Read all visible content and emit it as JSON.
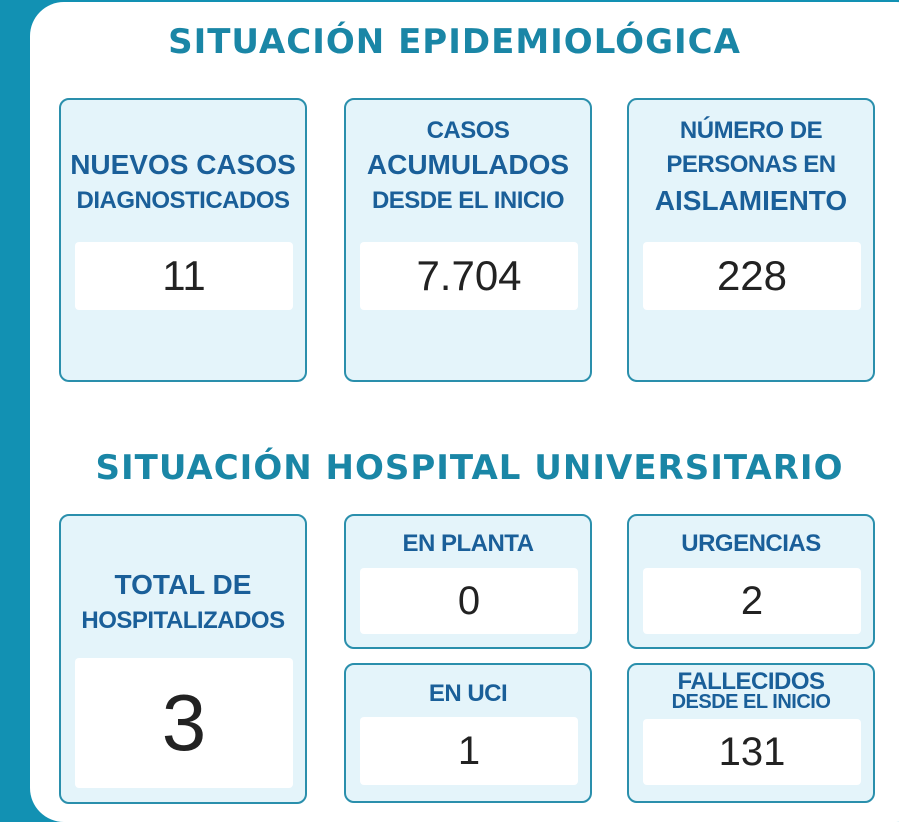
{
  "epidemiologic": {
    "title": "SITUACIÓN EPIDEMIOLÓGICA",
    "cards": [
      {
        "line1": "",
        "line2": "NUEVOS CASOS",
        "line3": "DIAGNOSTICADOS",
        "value": "11"
      },
      {
        "line1": "CASOS",
        "line2": "ACUMULADOS",
        "line3": "DESDE EL INICIO",
        "value": "7.704"
      },
      {
        "line1": "NÚMERO DE",
        "line2": "PERSONAS EN",
        "line3": "AISLAMIENTO",
        "value": "228"
      }
    ]
  },
  "hospital": {
    "title": "SITUACIÓN HOSPITAL UNIVERSITARIO",
    "total": {
      "line1": "TOTAL DE",
      "line2": "HOSPITALIZADOS",
      "value": "3"
    },
    "en_planta": {
      "label": "EN PLANTA",
      "value": "0"
    },
    "urgencias": {
      "label": "URGENCIAS",
      "value": "2"
    },
    "en_uci": {
      "label": "EN UCI",
      "value": "1"
    },
    "fallecidos": {
      "line1": "FALLECIDOS",
      "line2": "DESDE EL INICIO",
      "value": "131"
    }
  },
  "colors": {
    "background": "#1291b3",
    "card_fill": "#e4f4fa",
    "card_border": "#2a8fac",
    "title": "#1a86a6",
    "label": "#1a5f99"
  }
}
